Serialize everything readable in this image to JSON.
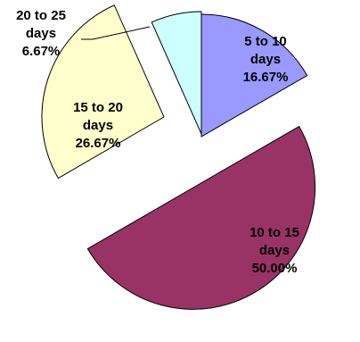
{
  "chart_data": {
    "type": "pie",
    "exploded": true,
    "slices": [
      {
        "category": "5 to 10 days",
        "line1": "5 to 10",
        "line2": "days",
        "percent_label": "16.67%",
        "value": 16.67,
        "color": "#9999FF"
      },
      {
        "category": "10 to 15 days",
        "line1": "10 to 15",
        "line2": "days",
        "percent_label": "50.00%",
        "value": 50.0,
        "color": "#993366"
      },
      {
        "category": "15 to 20 days",
        "line1": "15 to 20",
        "line2": "days",
        "percent_label": "26.67%",
        "value": 26.67,
        "color": "#FFFFCC"
      },
      {
        "category": "20 to 25 days",
        "line1": "20 to 25",
        "line2": "days",
        "percent_label": "6.67%",
        "value": 6.67,
        "color": "#CCFFFF"
      }
    ]
  }
}
